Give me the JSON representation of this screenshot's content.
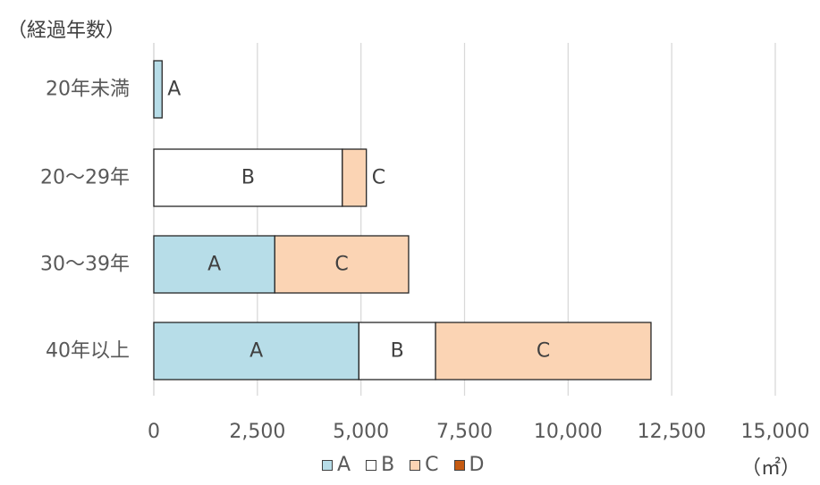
{
  "chart_data": {
    "type": "bar",
    "orientation": "horizontal",
    "stacked": true,
    "ytitle": "（経過年数）",
    "unit": "（㎡）",
    "categories": [
      "20年未満",
      "20〜29年",
      "30〜39年",
      "40年以上"
    ],
    "series": [
      {
        "name": "A",
        "color": "#b7dde8",
        "values": [
          200,
          0,
          2920,
          4950
        ]
      },
      {
        "name": "B",
        "color": "#ffffff",
        "values": [
          0,
          4550,
          0,
          1850
        ]
      },
      {
        "name": "C",
        "color": "#fbd4b4",
        "values": [
          0,
          580,
          3230,
          5200
        ]
      },
      {
        "name": "D",
        "color": "#c55a11",
        "values": [
          0,
          0,
          0,
          0
        ]
      }
    ],
    "xlim": [
      0,
      15000
    ],
    "xticks": [
      0,
      2500,
      5000,
      7500,
      10000,
      12500,
      15000
    ],
    "xtick_labels": [
      "0",
      "2,500",
      "5,000",
      "7,500",
      "10,000",
      "12,500",
      "15,000"
    ],
    "grid": true,
    "legend_position": "bottom"
  }
}
